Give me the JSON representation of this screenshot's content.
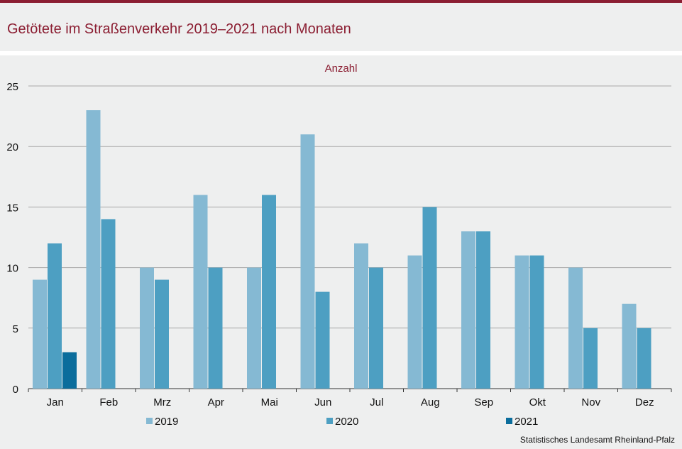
{
  "title": "Getötete im Straßenverkehr 2019–2021 nach Monaten",
  "source": "Statistisches Landesamt Rheinland-Pfalz",
  "colors": {
    "accent": "#8b1e32",
    "series_2019": "#85b9d3",
    "series_2020": "#4d9fc2",
    "series_2021": "#0b6d9c"
  },
  "chart_data": {
    "type": "bar",
    "title": "Getötete im Straßenverkehr 2019–2021 nach Monaten",
    "ylabel": "Anzahl",
    "xlabel": "",
    "ylim": [
      0,
      25
    ],
    "yticks": [
      0,
      5,
      10,
      15,
      20,
      25
    ],
    "grid": true,
    "legend": "bottom",
    "categories": [
      "Jan",
      "Feb",
      "Mrz",
      "Apr",
      "Mai",
      "Jun",
      "Jul",
      "Aug",
      "Sep",
      "Okt",
      "Nov",
      "Dez"
    ],
    "series": [
      {
        "name": "2019",
        "color": "#85b9d3",
        "values": [
          9,
          23,
          10,
          16,
          10,
          21,
          12,
          11,
          13,
          11,
          10,
          7
        ]
      },
      {
        "name": "2020",
        "color": "#4d9fc2",
        "values": [
          12,
          14,
          9,
          10,
          16,
          8,
          10,
          15,
          13,
          11,
          5,
          5
        ]
      },
      {
        "name": "2021",
        "color": "#0b6d9c",
        "values": [
          3,
          null,
          null,
          null,
          null,
          null,
          null,
          null,
          null,
          null,
          null,
          null
        ]
      }
    ]
  }
}
